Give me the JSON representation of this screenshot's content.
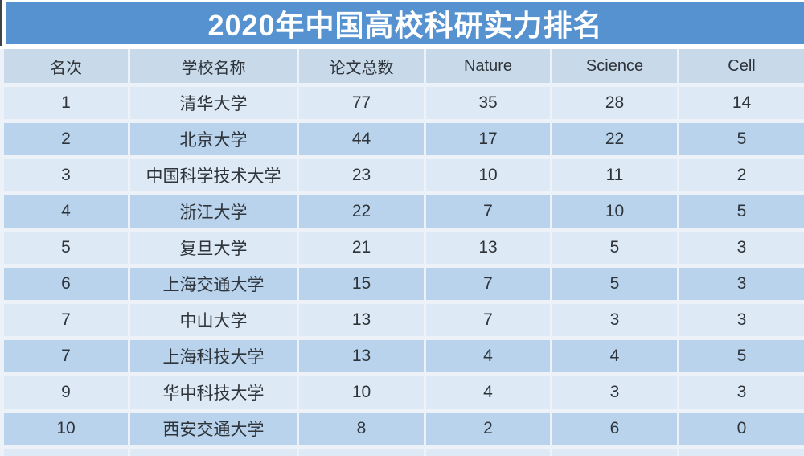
{
  "title": "2020年中国高校科研实力排名",
  "colors": {
    "banner": "#5592cf",
    "header_bg": "#c8d9ea",
    "row_light": "#dde9f5",
    "row_dark": "#bad3ec",
    "separator": "#edf2f8",
    "text": "#2e343a",
    "title_text": "#ffffff"
  },
  "chart_data": {
    "type": "table",
    "title": "2020年中国高校科研实力排名",
    "columns": [
      "名次",
      "学校名称",
      "论文总数",
      "Nature",
      "Science",
      "Cell"
    ],
    "column_keys": [
      "rank",
      "school",
      "total-papers",
      "nature",
      "science",
      "cell"
    ],
    "rows": [
      [
        "1",
        "清华大学",
        "77",
        "35",
        "28",
        "14"
      ],
      [
        "2",
        "北京大学",
        "44",
        "17",
        "22",
        "5"
      ],
      [
        "3",
        "中国科学技术大学",
        "23",
        "10",
        "11",
        "2"
      ],
      [
        "4",
        "浙江大学",
        "22",
        "7",
        "10",
        "5"
      ],
      [
        "5",
        "复旦大学",
        "21",
        "13",
        "5",
        "3"
      ],
      [
        "6",
        "上海交通大学",
        "15",
        "7",
        "5",
        "3"
      ],
      [
        "7",
        "中山大学",
        "13",
        "7",
        "3",
        "3"
      ],
      [
        "7",
        "上海科技大学",
        "13",
        "4",
        "4",
        "5"
      ],
      [
        "9",
        "华中科技大学",
        "10",
        "4",
        "3",
        "3"
      ],
      [
        "10",
        "西安交通大学",
        "8",
        "2",
        "6",
        "0"
      ]
    ]
  }
}
